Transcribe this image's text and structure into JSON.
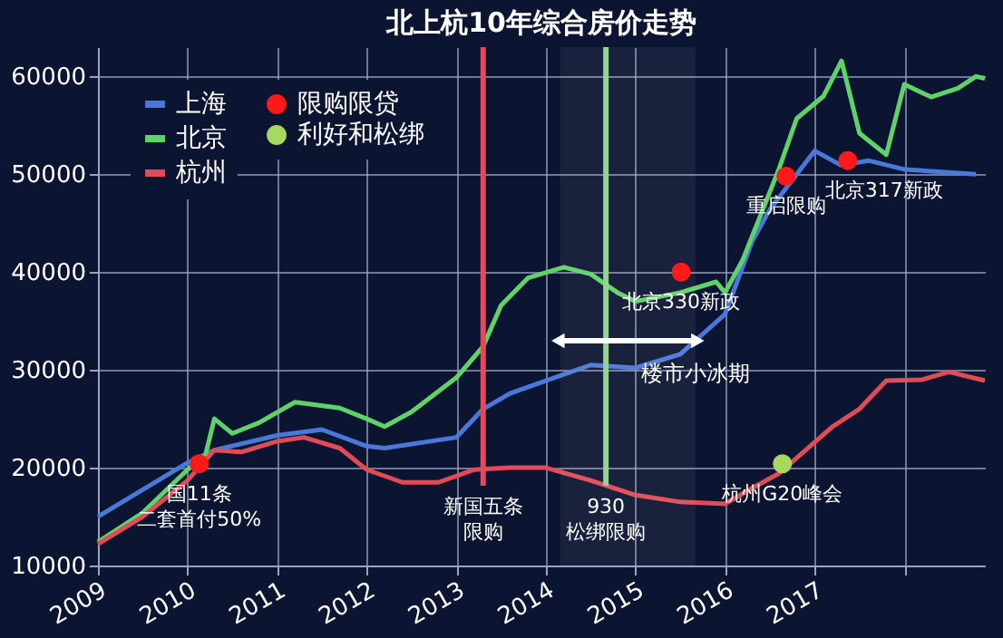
{
  "chart_data": {
    "type": "line",
    "title": "北上杭10年综合房价走势",
    "xlim": [
      2009,
      2018.9
    ],
    "xticks": [
      2009,
      2010,
      2011,
      2012,
      2013,
      2014,
      2015,
      2016,
      2017,
      {
        "value": 2018,
        "label": null
      }
    ],
    "ylim": [
      10000,
      63000
    ],
    "yticks": [
      10000,
      20000,
      30000,
      40000,
      50000,
      60000
    ],
    "grid": true,
    "legend": "top left",
    "series": [
      {
        "name": "上海",
        "color": "#4a78d8",
        "x": [
          2009,
          2010,
          2010.3,
          2011,
          2011.5,
          2012,
          2012.2,
          2013,
          2013.3,
          2013.6,
          2014,
          2014.5,
          2015,
          2015.5,
          2016,
          2016.3,
          2016.5,
          2016.8,
          2017,
          2017.3,
          2017.6,
          2018,
          2018.8
        ],
        "values": [
          15000,
          20500,
          21800,
          23300,
          23900,
          22200,
          22000,
          23100,
          26000,
          27600,
          28900,
          30500,
          30200,
          31600,
          35700,
          43100,
          46400,
          50000,
          52400,
          50900,
          51400,
          50500,
          50000
        ]
      },
      {
        "name": "北京",
        "color": "#5fd36a",
        "x": [
          2009,
          2009.5,
          2010,
          2010.2,
          2010.3,
          2010.5,
          2010.8,
          2011.2,
          2011.7,
          2012,
          2012.2,
          2012.5,
          2013,
          2013.3,
          2013.5,
          2013.8,
          2014.2,
          2014.5,
          2014.8,
          2015,
          2015.5,
          2015.9,
          2016,
          2016.2,
          2016.4,
          2016.6,
          2016.8,
          2017.1,
          2017.3,
          2017.5,
          2017.8,
          2018,
          2018.3,
          2018.6,
          2018.8,
          2018.9
        ],
        "values": [
          12400,
          15400,
          19800,
          21300,
          25000,
          23500,
          24600,
          26700,
          26100,
          25000,
          24200,
          25700,
          29200,
          32400,
          36600,
          39400,
          40500,
          39800,
          37900,
          37000,
          37900,
          39000,
          37900,
          41300,
          45900,
          50500,
          55700,
          58000,
          61600,
          54200,
          52000,
          59200,
          57900,
          58800,
          60000,
          59800
        ]
      },
      {
        "name": "杭州",
        "color": "#e04b55",
        "x": [
          2009,
          2009.5,
          2010,
          2010.3,
          2010.6,
          2011,
          2011.3,
          2011.7,
          2012,
          2012.4,
          2012.8,
          2013.2,
          2013.6,
          2014,
          2014.5,
          2015,
          2015.5,
          2016,
          2016.3,
          2016.6,
          2016.9,
          2017.2,
          2017.5,
          2017.8,
          2018.2,
          2018.5,
          2018.9
        ],
        "values": [
          12200,
          15000,
          18700,
          21800,
          21600,
          22700,
          23100,
          22000,
          19800,
          18500,
          18500,
          19800,
          20000,
          20000,
          18700,
          17200,
          16500,
          16300,
          17900,
          19400,
          21800,
          24200,
          26000,
          28900,
          29000,
          29800,
          28900
        ]
      },
      {
        "name": "限购限贷",
        "type": "scatter",
        "marker": "circle",
        "color": "#ff1a1a",
        "x": [
          2010.13,
          2015.51,
          2016.68,
          2017.37
        ],
        "values": [
          20400,
          40000,
          49800,
          51400
        ]
      },
      {
        "name": "利好和松绑",
        "type": "scatter",
        "marker": "circle",
        "color": "#a8d860",
        "x": [
          2016.64
        ],
        "values": [
          20400
        ]
      }
    ],
    "ref_lines": [
      {
        "axis": "x",
        "value": 2013.3,
        "label": "新国五条限购",
        "color": "#e04b55"
      },
      {
        "axis": "x",
        "value": 2014.67,
        "label": "930松绑限购",
        "color": "#8fd18f"
      }
    ],
    "bands": [
      {
        "axis": "x",
        "from": 2014.16,
        "to": 2015.67,
        "label": "楼市小冰期",
        "color": "#ffffff"
      }
    ],
    "annotations": [
      {
        "text": "国11条",
        "x": 2010.13,
        "y": 20400
      },
      {
        "text": "二套首付50%",
        "x": 2010.13,
        "y": 20400
      },
      {
        "text": "北京330新政",
        "x": 2015.51,
        "y": 40000
      },
      {
        "text": "重启限购",
        "x": 2016.68,
        "y": 49800
      },
      {
        "text": "北京317新政",
        "x": 2017.37,
        "y": 51400
      },
      {
        "text": "杭州G20峰会",
        "x": 2016.64,
        "y": 20400
      }
    ]
  }
}
